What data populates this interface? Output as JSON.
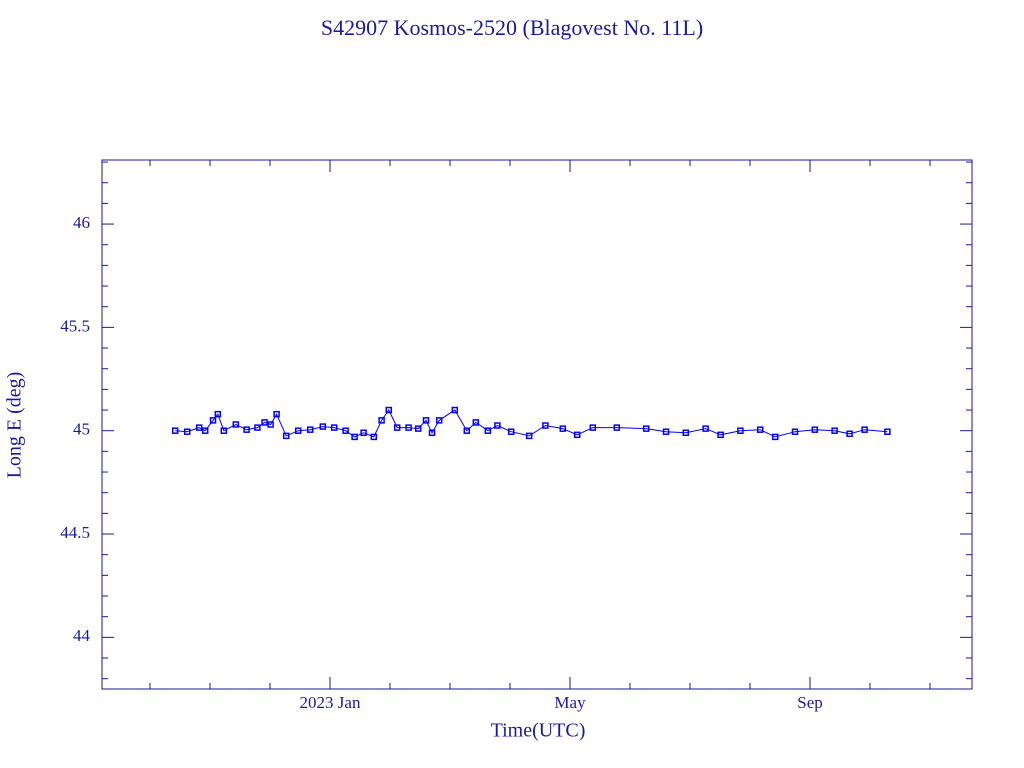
{
  "chart_data": {
    "type": "line",
    "title": "S42907 Kosmos-2520  (Blagovest No. 11L)",
    "x_label": "Time(UTC)",
    "y_label": "Long E (deg)",
    "color": "#0000ff",
    "x": [
      -2.58,
      -2.38,
      -2.18,
      -2.08,
      -1.95,
      -1.87,
      -1.77,
      -1.57,
      -1.39,
      -1.21,
      -1.09,
      -0.99,
      -0.89,
      -0.73,
      -0.53,
      -0.33,
      -0.12,
      0.07,
      0.26,
      0.41,
      0.56,
      0.73,
      0.86,
      0.98,
      1.12,
      1.31,
      1.47,
      1.6,
      1.7,
      1.82,
      2.08,
      2.28,
      2.43,
      2.63,
      2.79,
      3.02,
      3.32,
      3.59,
      3.88,
      4.12,
      4.38,
      4.78,
      5.27,
      5.6,
      5.93,
      6.26,
      6.51,
      6.84,
      7.17,
      7.42,
      7.75,
      8.08,
      8.41,
      8.66,
      8.91,
      9.29
    ],
    "values": [
      45.0,
      44.995,
      45.015,
      45.0,
      45.05,
      45.08,
      45.0,
      45.03,
      45.005,
      45.015,
      45.04,
      45.03,
      45.08,
      44.975,
      45.0,
      45.005,
      45.02,
      45.015,
      45.0,
      44.97,
      44.99,
      44.97,
      45.05,
      45.1,
      45.015,
      45.015,
      45.01,
      45.05,
      44.99,
      45.05,
      45.1,
      45.0,
      45.04,
      45.0,
      45.025,
      44.995,
      44.975,
      45.025,
      45.01,
      44.98,
      45.015,
      45.015,
      45.01,
      44.995,
      44.99,
      45.01,
      44.98,
      45.0,
      45.005,
      44.97,
      44.995,
      45.005,
      45.0,
      44.985,
      45.005,
      44.995
    ],
    "xlim": [
      -3.8,
      10.7
    ],
    "xticks": [
      {
        "value": 0,
        "label": "2023 Jan"
      },
      {
        "value": 4,
        "label": "May"
      },
      {
        "value": 8,
        "label": "Sep"
      }
    ],
    "x_minor_ticks": [
      -3,
      -2,
      -1,
      1,
      2,
      3,
      5,
      6,
      7,
      9,
      10
    ],
    "ylim": [
      43.75,
      46.31
    ],
    "yticks": [
      44,
      44.5,
      45,
      45.5,
      46
    ],
    "y_minor_ticks": [
      43.8,
      43.9,
      44.1,
      44.2,
      44.3,
      44.4,
      44.6,
      44.7,
      44.8,
      44.9,
      45.1,
      45.2,
      45.3,
      45.4,
      45.6,
      45.7,
      45.8,
      45.9,
      46.1,
      46.2,
      46.3
    ]
  }
}
